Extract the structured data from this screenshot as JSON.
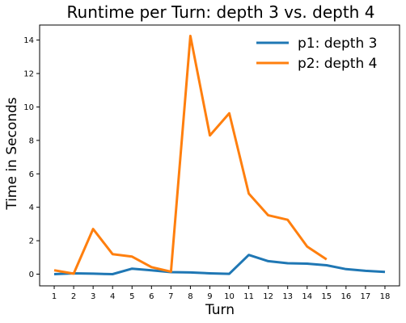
{
  "chart_data": {
    "type": "line",
    "title": "Runtime per Turn: depth 3 vs. depth 4",
    "xlabel": "Turn",
    "ylabel": "Time in Seconds",
    "xlim": [
      0.25,
      18.75
    ],
    "ylim": [
      -0.7,
      14.9
    ],
    "xticks": [
      1,
      2,
      3,
      4,
      5,
      6,
      7,
      8,
      9,
      10,
      11,
      12,
      13,
      14,
      15,
      16,
      17,
      18
    ],
    "yticks": [
      0,
      2,
      4,
      6,
      8,
      10,
      12,
      14
    ],
    "grid": false,
    "legend_position": "top-right",
    "series": [
      {
        "name": "p1: depth 3",
        "color": "#1f77b4",
        "x": [
          1,
          2,
          3,
          4,
          5,
          6,
          7,
          8,
          9,
          10,
          11,
          12,
          13,
          14,
          15,
          16,
          17,
          18
        ],
        "y": [
          0.0,
          0.05,
          0.03,
          0.0,
          0.33,
          0.23,
          0.12,
          0.1,
          0.05,
          0.02,
          1.15,
          0.78,
          0.65,
          0.63,
          0.53,
          0.3,
          0.2,
          0.13
        ]
      },
      {
        "name": "p2: depth 4",
        "color": "#ff7f0e",
        "x": [
          1,
          2,
          3,
          4,
          5,
          6,
          7,
          8,
          9,
          10,
          11,
          12,
          13,
          14,
          15
        ],
        "y": [
          0.23,
          0.03,
          2.7,
          1.2,
          1.05,
          0.42,
          0.15,
          14.25,
          8.3,
          9.62,
          4.82,
          3.52,
          3.25,
          1.65,
          0.88
        ]
      }
    ]
  }
}
